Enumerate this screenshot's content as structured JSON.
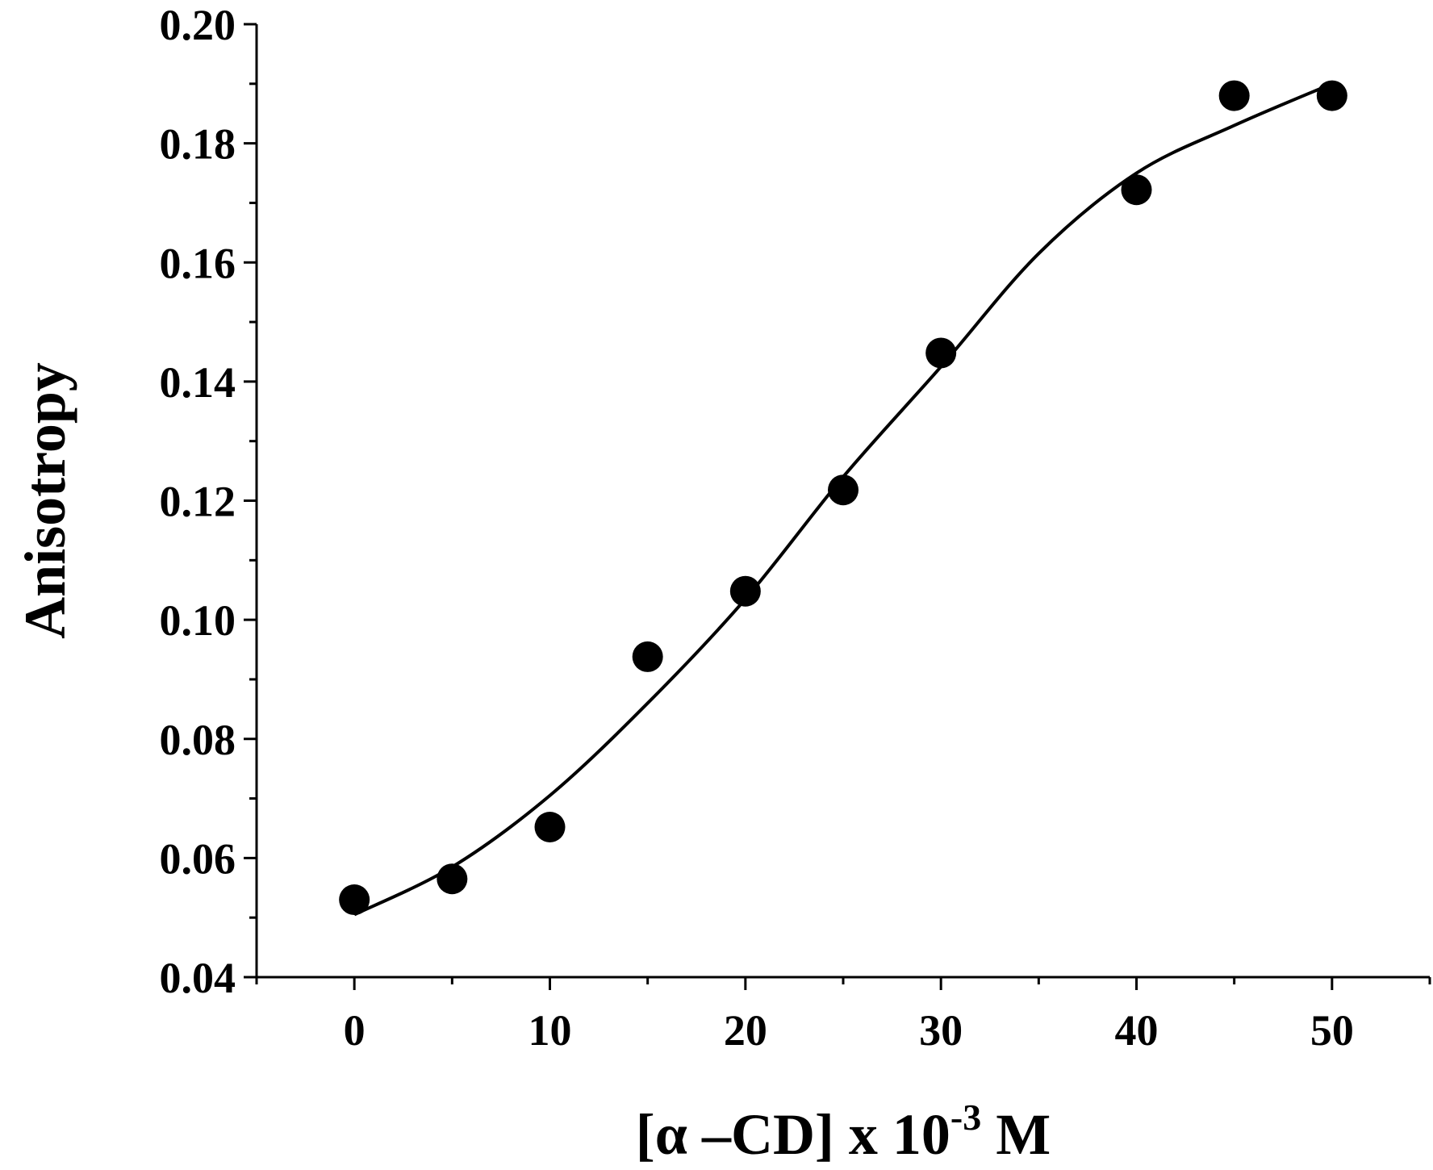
{
  "chart_data": {
    "type": "scatter",
    "title": "",
    "xlabel_parts": {
      "main": "[α –CD] x 10",
      "sup": "-3",
      "tail": " M"
    },
    "ylabel": "Anisotropy",
    "xlim": [
      -5,
      55
    ],
    "ylim": [
      0.04,
      0.2
    ],
    "x_ticks": [
      0,
      10,
      20,
      30,
      40,
      50
    ],
    "x_tick_labels": [
      "0",
      "10",
      "20",
      "30",
      "40",
      "50"
    ],
    "x_minor_ticks": [
      -5,
      5,
      15,
      25,
      35,
      45,
      55
    ],
    "y_ticks": [
      0.04,
      0.06,
      0.08,
      0.1,
      0.12,
      0.14,
      0.16,
      0.18,
      0.2
    ],
    "y_tick_labels": [
      "0.04",
      "0.06",
      "0.08",
      "0.10",
      "0.12",
      "0.14",
      "0.16",
      "0.18",
      "0.20"
    ],
    "y_minor_ticks": [
      0.05,
      0.07,
      0.09,
      0.11,
      0.13,
      0.15,
      0.17,
      0.19
    ],
    "grid": false,
    "series": [
      {
        "type": "scatter",
        "x": [
          0,
          5,
          10,
          15,
          20,
          25,
          30,
          40,
          45,
          50
        ],
        "y": [
          0.053,
          0.0565,
          0.0652,
          0.0938,
          0.1048,
          0.1218,
          0.1448,
          0.1722,
          0.188,
          0.188
        ]
      },
      {
        "type": "line",
        "x": [
          0,
          5,
          10,
          15,
          20,
          25,
          30,
          35,
          40,
          45,
          50
        ],
        "y": [
          0.0505,
          0.0585,
          0.0705,
          0.086,
          0.1035,
          0.124,
          0.1425,
          0.1615,
          0.175,
          0.183,
          0.19
        ]
      }
    ]
  }
}
